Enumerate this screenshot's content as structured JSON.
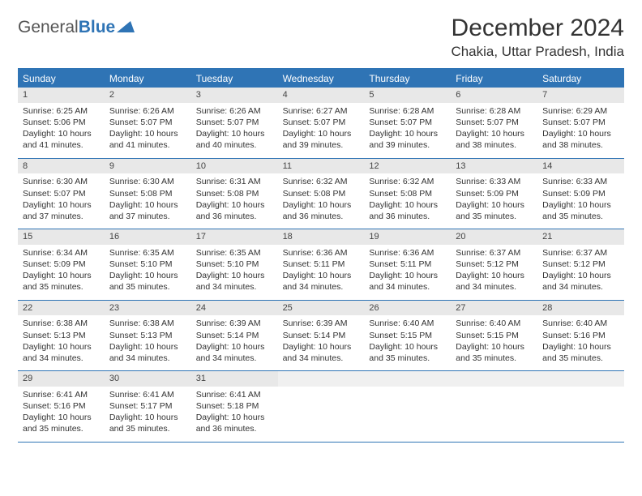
{
  "logo": {
    "text_general": "General",
    "text_blue": "Blue"
  },
  "header": {
    "month_year": "December 2024",
    "location": "Chakia, Uttar Pradesh, India"
  },
  "colors": {
    "accent": "#2f74b5",
    "daynum_bg": "#e8e8e8",
    "text": "#333333",
    "bg": "#ffffff"
  },
  "daynames": [
    "Sunday",
    "Monday",
    "Tuesday",
    "Wednesday",
    "Thursday",
    "Friday",
    "Saturday"
  ],
  "days": [
    {
      "n": "1",
      "sr": "Sunrise: 6:25 AM",
      "ss": "Sunset: 5:06 PM",
      "dl": "Daylight: 10 hours and 41 minutes."
    },
    {
      "n": "2",
      "sr": "Sunrise: 6:26 AM",
      "ss": "Sunset: 5:07 PM",
      "dl": "Daylight: 10 hours and 41 minutes."
    },
    {
      "n": "3",
      "sr": "Sunrise: 6:26 AM",
      "ss": "Sunset: 5:07 PM",
      "dl": "Daylight: 10 hours and 40 minutes."
    },
    {
      "n": "4",
      "sr": "Sunrise: 6:27 AM",
      "ss": "Sunset: 5:07 PM",
      "dl": "Daylight: 10 hours and 39 minutes."
    },
    {
      "n": "5",
      "sr": "Sunrise: 6:28 AM",
      "ss": "Sunset: 5:07 PM",
      "dl": "Daylight: 10 hours and 39 minutes."
    },
    {
      "n": "6",
      "sr": "Sunrise: 6:28 AM",
      "ss": "Sunset: 5:07 PM",
      "dl": "Daylight: 10 hours and 38 minutes."
    },
    {
      "n": "7",
      "sr": "Sunrise: 6:29 AM",
      "ss": "Sunset: 5:07 PM",
      "dl": "Daylight: 10 hours and 38 minutes."
    },
    {
      "n": "8",
      "sr": "Sunrise: 6:30 AM",
      "ss": "Sunset: 5:07 PM",
      "dl": "Daylight: 10 hours and 37 minutes."
    },
    {
      "n": "9",
      "sr": "Sunrise: 6:30 AM",
      "ss": "Sunset: 5:08 PM",
      "dl": "Daylight: 10 hours and 37 minutes."
    },
    {
      "n": "10",
      "sr": "Sunrise: 6:31 AM",
      "ss": "Sunset: 5:08 PM",
      "dl": "Daylight: 10 hours and 36 minutes."
    },
    {
      "n": "11",
      "sr": "Sunrise: 6:32 AM",
      "ss": "Sunset: 5:08 PM",
      "dl": "Daylight: 10 hours and 36 minutes."
    },
    {
      "n": "12",
      "sr": "Sunrise: 6:32 AM",
      "ss": "Sunset: 5:08 PM",
      "dl": "Daylight: 10 hours and 36 minutes."
    },
    {
      "n": "13",
      "sr": "Sunrise: 6:33 AM",
      "ss": "Sunset: 5:09 PM",
      "dl": "Daylight: 10 hours and 35 minutes."
    },
    {
      "n": "14",
      "sr": "Sunrise: 6:33 AM",
      "ss": "Sunset: 5:09 PM",
      "dl": "Daylight: 10 hours and 35 minutes."
    },
    {
      "n": "15",
      "sr": "Sunrise: 6:34 AM",
      "ss": "Sunset: 5:09 PM",
      "dl": "Daylight: 10 hours and 35 minutes."
    },
    {
      "n": "16",
      "sr": "Sunrise: 6:35 AM",
      "ss": "Sunset: 5:10 PM",
      "dl": "Daylight: 10 hours and 35 minutes."
    },
    {
      "n": "17",
      "sr": "Sunrise: 6:35 AM",
      "ss": "Sunset: 5:10 PM",
      "dl": "Daylight: 10 hours and 34 minutes."
    },
    {
      "n": "18",
      "sr": "Sunrise: 6:36 AM",
      "ss": "Sunset: 5:11 PM",
      "dl": "Daylight: 10 hours and 34 minutes."
    },
    {
      "n": "19",
      "sr": "Sunrise: 6:36 AM",
      "ss": "Sunset: 5:11 PM",
      "dl": "Daylight: 10 hours and 34 minutes."
    },
    {
      "n": "20",
      "sr": "Sunrise: 6:37 AM",
      "ss": "Sunset: 5:12 PM",
      "dl": "Daylight: 10 hours and 34 minutes."
    },
    {
      "n": "21",
      "sr": "Sunrise: 6:37 AM",
      "ss": "Sunset: 5:12 PM",
      "dl": "Daylight: 10 hours and 34 minutes."
    },
    {
      "n": "22",
      "sr": "Sunrise: 6:38 AM",
      "ss": "Sunset: 5:13 PM",
      "dl": "Daylight: 10 hours and 34 minutes."
    },
    {
      "n": "23",
      "sr": "Sunrise: 6:38 AM",
      "ss": "Sunset: 5:13 PM",
      "dl": "Daylight: 10 hours and 34 minutes."
    },
    {
      "n": "24",
      "sr": "Sunrise: 6:39 AM",
      "ss": "Sunset: 5:14 PM",
      "dl": "Daylight: 10 hours and 34 minutes."
    },
    {
      "n": "25",
      "sr": "Sunrise: 6:39 AM",
      "ss": "Sunset: 5:14 PM",
      "dl": "Daylight: 10 hours and 34 minutes."
    },
    {
      "n": "26",
      "sr": "Sunrise: 6:40 AM",
      "ss": "Sunset: 5:15 PM",
      "dl": "Daylight: 10 hours and 35 minutes."
    },
    {
      "n": "27",
      "sr": "Sunrise: 6:40 AM",
      "ss": "Sunset: 5:15 PM",
      "dl": "Daylight: 10 hours and 35 minutes."
    },
    {
      "n": "28",
      "sr": "Sunrise: 6:40 AM",
      "ss": "Sunset: 5:16 PM",
      "dl": "Daylight: 10 hours and 35 minutes."
    },
    {
      "n": "29",
      "sr": "Sunrise: 6:41 AM",
      "ss": "Sunset: 5:16 PM",
      "dl": "Daylight: 10 hours and 35 minutes."
    },
    {
      "n": "30",
      "sr": "Sunrise: 6:41 AM",
      "ss": "Sunset: 5:17 PM",
      "dl": "Daylight: 10 hours and 35 minutes."
    },
    {
      "n": "31",
      "sr": "Sunrise: 6:41 AM",
      "ss": "Sunset: 5:18 PM",
      "dl": "Daylight: 10 hours and 36 minutes."
    }
  ],
  "layout": {
    "first_day_offset": 0,
    "trailing_blanks": 4,
    "columns": 7
  }
}
